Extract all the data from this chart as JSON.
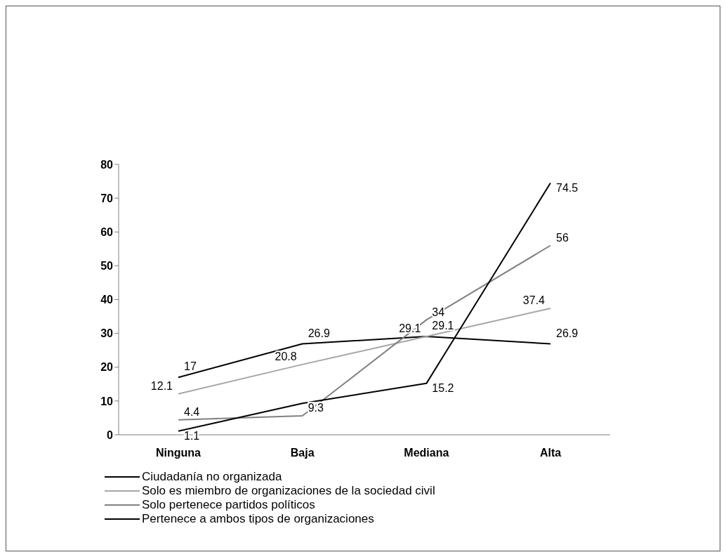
{
  "chart_data": {
    "type": "line",
    "categories": [
      "Ninguna",
      "Baja",
      "Mediana",
      "Alta"
    ],
    "series": [
      {
        "name": "Ciudadanía no organizada",
        "color": "#000000",
        "values": [
          17,
          26.9,
          29.1,
          26.9
        ]
      },
      {
        "name": "Solo es miembro de organizaciones de la sociedad civil",
        "color": "#a6a6a6",
        "values": [
          12.1,
          20.8,
          29.1,
          37.4
        ]
      },
      {
        "name": "Solo pertenece partidos políticos",
        "color": "#808080",
        "values": [
          4.4,
          5.6,
          34,
          56
        ]
      },
      {
        "name": "Pertenece a ambos tipos de organizaciones",
        "color": "#000000",
        "values": [
          1.1,
          9.3,
          15.2,
          74.5
        ]
      }
    ],
    "ylim": [
      0,
      80
    ],
    "yticks": [
      0,
      10,
      20,
      30,
      40,
      50,
      60,
      70,
      80
    ],
    "grid": false,
    "legend": "bottom left",
    "marker": "none",
    "line_style": "solid",
    "data_labels": true
  }
}
